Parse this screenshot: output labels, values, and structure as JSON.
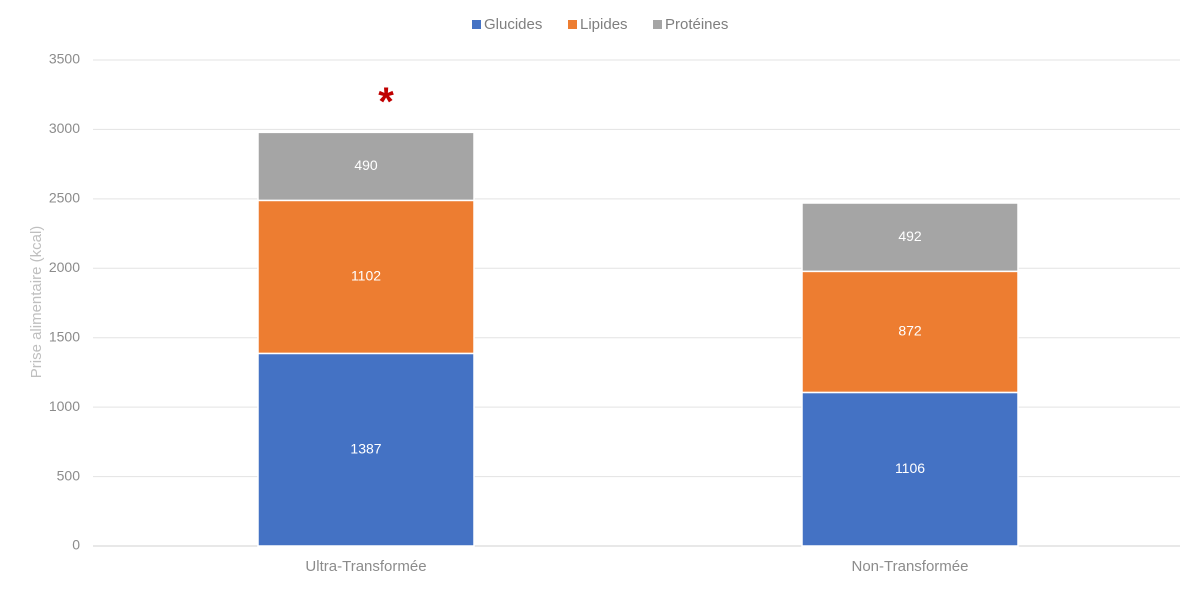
{
  "chart_data": {
    "type": "bar",
    "stacked": true,
    "title": "",
    "xlabel": "",
    "ylabel": "Prise alimentaire (kcal)",
    "ylim": [
      0,
      3500
    ],
    "yticks": [
      0,
      500,
      1000,
      1500,
      2000,
      2500,
      3000,
      3500
    ],
    "grid": true,
    "legend_position": "top",
    "categories": [
      "Ultra-Transformée",
      "Non-Transformée"
    ],
    "series": [
      {
        "name": "Glucides",
        "color": "#4472C4",
        "values": [
          1387,
          1106
        ]
      },
      {
        "name": "Lipides",
        "color": "#ED7D31",
        "values": [
          1102,
          872
        ]
      },
      {
        "name": "Protéines",
        "color": "#A5A5A5",
        "values": [
          490,
          492
        ]
      }
    ],
    "annotations": [
      {
        "text": "*",
        "category": "Ultra-Transformée",
        "color": "#C00000"
      }
    ]
  }
}
